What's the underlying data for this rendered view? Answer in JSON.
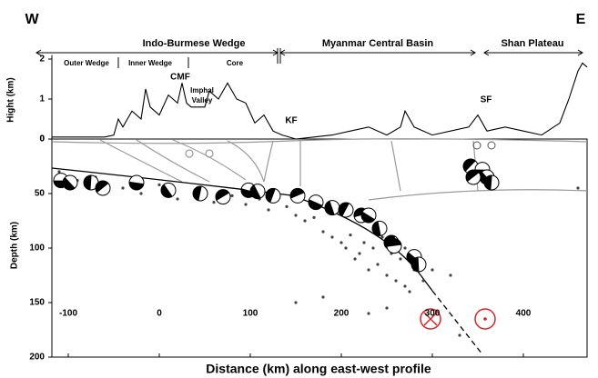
{
  "labels": {
    "west": "W",
    "east": "E",
    "ibw": "Indo-Burmese Wedge",
    "mcb": "Myanmar Central Basin",
    "shan": "Shan Plateau",
    "outer": "Outer Wedge",
    "inner": "Inner Wedge",
    "core": "Core",
    "cmf": "CMF",
    "imphal1": "Imphal",
    "imphal2": "Valley",
    "kf": "KF",
    "sf": "SF"
  },
  "chart_data": [
    {
      "type": "line",
      "ylabel": "Hight (km)",
      "xlim": [
        -118,
        470
      ],
      "ylim": [
        0,
        2.1
      ],
      "yticks": [
        0,
        1,
        2
      ],
      "x": [
        -118,
        -100,
        -80,
        -60,
        -50,
        -45,
        -40,
        -30,
        -20,
        -15,
        -10,
        0,
        10,
        20,
        25,
        30,
        35,
        50,
        55,
        65,
        75,
        85,
        95,
        105,
        115,
        125,
        135,
        150,
        170,
        190,
        210,
        230,
        240,
        250,
        265,
        270,
        280,
        300,
        320,
        340,
        350,
        360,
        380,
        400,
        420,
        440,
        450,
        460,
        465,
        470
      ],
      "values": [
        0.05,
        0.05,
        0.05,
        0.05,
        0.1,
        0.5,
        0.3,
        0.7,
        0.5,
        1.25,
        0.8,
        0.6,
        1.1,
        0.9,
        1.4,
        0.9,
        0.8,
        0.8,
        1.2,
        1.0,
        1.4,
        1.0,
        0.9,
        0.4,
        0.6,
        0.2,
        0.1,
        0.0,
        0.05,
        0.1,
        0.2,
        0.3,
        0.2,
        0.1,
        0.3,
        0.7,
        0.3,
        0.1,
        0.2,
        0.3,
        0.6,
        0.2,
        0.3,
        0.2,
        0.1,
        0.4,
        1.0,
        1.7,
        1.9,
        1.8
      ]
    },
    {
      "type": "scatter",
      "ylabel": "Depth (km)",
      "xlabel": "Distance (km) along east-west profile",
      "xlim": [
        -118,
        470
      ],
      "ylim": [
        200,
        0
      ],
      "xticks": [
        -100,
        0,
        100,
        200,
        300,
        400
      ],
      "yticks": [
        0,
        50,
        100,
        150,
        200
      ],
      "x": [
        -110,
        -90,
        -70,
        -40,
        -20,
        0,
        20,
        40,
        60,
        80,
        95,
        110,
        120,
        140,
        150,
        160,
        170,
        180,
        190,
        200,
        205,
        210,
        215,
        220,
        225,
        230,
        235,
        240,
        245,
        250,
        255,
        260,
        265,
        270,
        275,
        280,
        285,
        290,
        150,
        180,
        230,
        250,
        270,
        300,
        320,
        330,
        460
      ],
      "values": [
        30,
        38,
        35,
        45,
        50,
        42,
        55,
        48,
        58,
        52,
        60,
        55,
        65,
        62,
        70,
        75,
        72,
        85,
        90,
        95,
        100,
        88,
        110,
        105,
        95,
        120,
        100,
        115,
        90,
        125,
        105,
        130,
        110,
        100,
        140,
        120,
        110,
        130,
        150,
        145,
        160,
        155,
        135,
        120,
        125,
        180,
        45
      ],
      "mechanisms": {
        "x": [
          -108,
          -98,
          -75,
          -62,
          -25,
          10,
          45,
          70,
          98,
          108,
          125,
          152,
          172,
          190,
          205,
          222,
          230,
          242,
          255,
          258,
          280,
          285,
          342,
          355,
          360,
          365,
          345
        ],
        "depth": [
          38,
          40,
          40,
          45,
          40,
          47,
          50,
          53,
          47,
          48,
          52,
          52,
          58,
          63,
          65,
          70,
          70,
          82,
          95,
          98,
          108,
          115,
          25,
          28,
          35,
          40,
          35
        ]
      }
    }
  ]
}
